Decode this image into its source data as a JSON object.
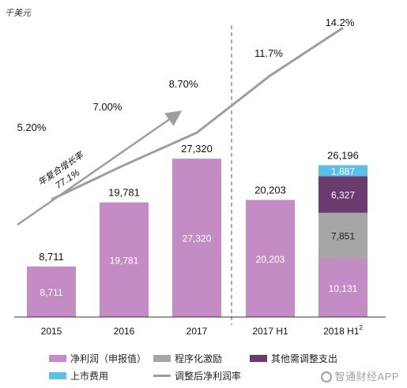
{
  "unit": "千美元",
  "chart_data": {
    "type": "bar",
    "categories": [
      "2015",
      "2016",
      "2017",
      "2017 H1",
      "2018 H1"
    ],
    "category_superscripts": [
      "",
      "",
      "",
      "",
      "2"
    ],
    "series": [
      {
        "name": "净利润（申报值）",
        "color": "#c48cc4",
        "values": [
          8711,
          19781,
          27320,
          20203,
          10131
        ]
      },
      {
        "name": "程序化激励",
        "color": "#a6a6a6",
        "values": [
          0,
          0,
          0,
          0,
          7851
        ]
      },
      {
        "name": "其他需调整支出",
        "color": "#6b3a6e",
        "values": [
          0,
          0,
          0,
          0,
          6327
        ]
      },
      {
        "name": "上市费用",
        "color": "#5bc0e8",
        "values": [
          0,
          0,
          0,
          0,
          1887
        ]
      }
    ],
    "totals": [
      8711,
      19781,
      27320,
      20203,
      26196
    ],
    "total_labels": [
      "8,711",
      "19,781",
      "27,320",
      "20,203",
      "26,196"
    ],
    "inner_labels": {
      "净利润（申报值）": [
        "8,711",
        "19,781",
        "27,320",
        "20,203",
        "10,131"
      ],
      "程序化激励": [
        "",
        "",
        "",
        "",
        "7,851"
      ],
      "其他需调整支出": [
        "",
        "",
        "",
        "",
        "6,327"
      ],
      "上市费用": [
        "",
        "",
        "",
        "",
        "1,887"
      ]
    },
    "line": {
      "name": "调整后净利润率",
      "color": "#9e9e9e",
      "values": [
        5.2,
        7.0,
        8.7,
        11.7,
        14.2
      ],
      "labels": [
        "5.20%",
        "7.00%",
        "8.70%",
        "11.7%",
        "14.2%"
      ]
    },
    "annotation": {
      "text": "年复合增长率",
      "value": "77.1%"
    },
    "ylim": [
      0,
      30000
    ],
    "legend_position": "bottom"
  },
  "watermark": "智通财经APP"
}
